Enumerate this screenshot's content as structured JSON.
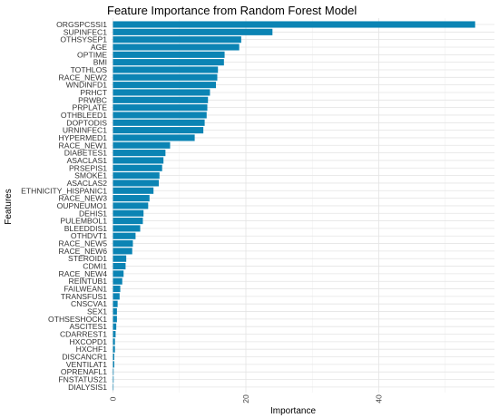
{
  "chart_data": {
    "type": "bar",
    "orientation": "horizontal",
    "title": "Feature Importance from Random Forest Model",
    "xlabel": "Importance",
    "ylabel": "Features",
    "xlim": [
      0,
      55
    ],
    "xticks": [
      0,
      20,
      40
    ],
    "grid": true,
    "bar_color": "#0b84b4",
    "categories": [
      "ORGSPCSSI1",
      "SUPINFEC1",
      "OTHSYSEP1",
      "AGE",
      "OPTIME",
      "BMI",
      "TOTHLOS",
      "RACE_NEW2",
      "WNDINFD1",
      "PRHCT",
      "PRWBC",
      "PRPLATE",
      "OTHBLEED1",
      "DOPTODIS",
      "URNINFEC1",
      "HYPERMED1",
      "RACE_NEW1",
      "DIABETES1",
      "ASACLAS1",
      "PRSEPIS1",
      "SMOKE1",
      "ASACLAS2",
      "ETHNICITY_HISPANIC1",
      "RACE_NEW3",
      "OUPNEUMO1",
      "DEHIS1",
      "PULEMBOL1",
      "BLEEDDIS1",
      "OTHDVT1",
      "RACE_NEW5",
      "RACE_NEW6",
      "STEROID1",
      "CDMI1",
      "RACE_NEW4",
      "REINTUB1",
      "FAILWEAN1",
      "TRANSFUS1",
      "CNSCVA1",
      "SEX1",
      "OTHSESHOCK1",
      "ASCITES1",
      "CDARREST1",
      "HXCOPD1",
      "HXCHF1",
      "DISCANCR1",
      "VENTILAT1",
      "OPRENAFL1",
      "FNSTATUS21",
      "DIALYSIS1"
    ],
    "values": [
      54.5,
      24.0,
      19.3,
      19.0,
      16.8,
      16.7,
      15.8,
      15.7,
      15.5,
      14.6,
      14.3,
      14.2,
      14.1,
      13.8,
      13.6,
      12.3,
      8.6,
      7.9,
      7.6,
      7.4,
      7.0,
      6.9,
      6.1,
      5.5,
      5.3,
      4.6,
      4.5,
      4.1,
      3.4,
      3.0,
      2.9,
      2.0,
      1.9,
      1.6,
      1.4,
      1.1,
      1.0,
      0.7,
      0.6,
      0.6,
      0.5,
      0.4,
      0.3,
      0.3,
      0.2,
      0.2,
      0.1,
      0.1,
      0.0
    ]
  }
}
